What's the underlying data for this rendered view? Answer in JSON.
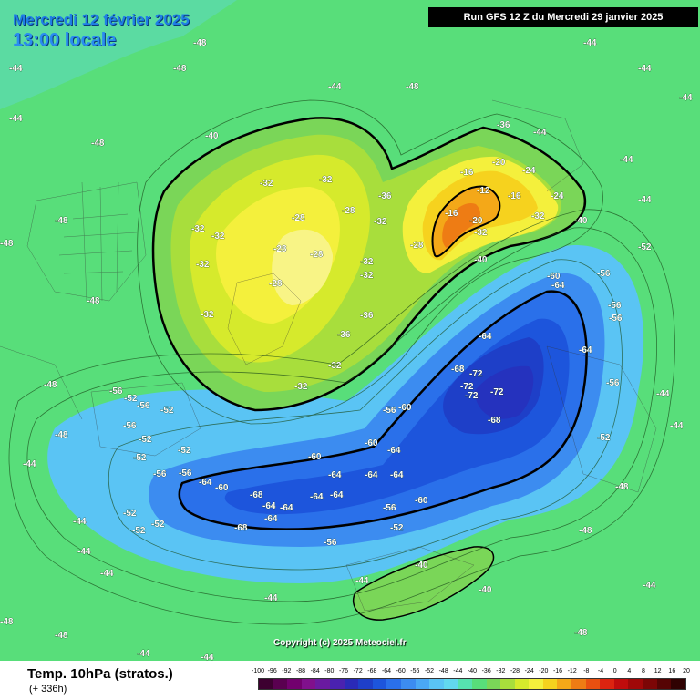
{
  "header": {
    "date_line": "Mercredi 12 février 2025",
    "time_line": "13:00 locale",
    "run_info": "Run GFS 12 Z du Mercredi 29 janvier 2025"
  },
  "map": {
    "copyright": "Copyright (c) 2025 Meteociel.fr",
    "labels": [
      "-48",
      "-44",
      "-40",
      "-36",
      "-32",
      "-28",
      "-24",
      "-20",
      "-16",
      "-12",
      "-52",
      "-56",
      "-60",
      "-64",
      "-68",
      "-72"
    ]
  },
  "footer": {
    "field_title": "Temp. 10hPa (stratos.)",
    "lead_time": "(+ 336h)"
  },
  "scale": {
    "labels": [
      "-100",
      "-96",
      "-92",
      "-88",
      "-84",
      "-80",
      "-76",
      "-72",
      "-68",
      "-64",
      "-60",
      "-56",
      "-52",
      "-48",
      "-44",
      "-40",
      "-36",
      "-32",
      "-28",
      "-24",
      "-20",
      "-16",
      "-12",
      "-8",
      "-4",
      "0",
      "4",
      "8",
      "12",
      "16",
      "20"
    ],
    "colors": [
      "#3d0030",
      "#5a0050",
      "#72006e",
      "#80108c",
      "#6a1aa0",
      "#4a22b0",
      "#2a2ab8",
      "#1e3fc8",
      "#1d55dc",
      "#2a70ea",
      "#3c8cf0",
      "#4aa8f4",
      "#5ac4f4",
      "#62d8ee",
      "#56e2b0",
      "#58de7a",
      "#7ad658",
      "#a8de3c",
      "#d6ea2c",
      "#f4f03c",
      "#f6d21e",
      "#f4a818",
      "#ee7c14",
      "#e85010",
      "#dc2410",
      "#c00c0c",
      "#a00808",
      "#7c0606",
      "#560404",
      "#300202"
    ]
  }
}
